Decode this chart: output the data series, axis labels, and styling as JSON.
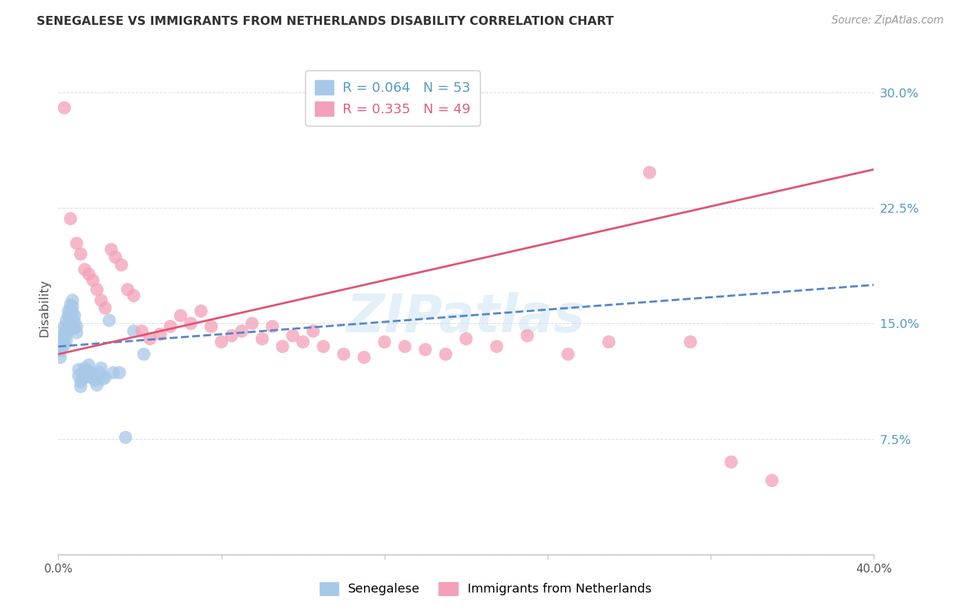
{
  "title": "SENEGALESE VS IMMIGRANTS FROM NETHERLANDS DISABILITY CORRELATION CHART",
  "source": "Source: ZipAtlas.com",
  "ylabel": "Disability",
  "yticks": [
    0.0,
    0.075,
    0.15,
    0.225,
    0.3
  ],
  "ytick_labels": [
    "",
    "7.5%",
    "15.0%",
    "22.5%",
    "30.0%"
  ],
  "xlim": [
    0.0,
    0.4
  ],
  "ylim": [
    0.0,
    0.32
  ],
  "xtick_positions": [
    0.0,
    0.08,
    0.16,
    0.24,
    0.32,
    0.4
  ],
  "xtick_labels": [
    "0.0%",
    "",
    "",
    "",
    "",
    "40.0%"
  ],
  "blue_color": "#a8c8e8",
  "pink_color": "#f4a0b8",
  "blue_line_color": "#5588cc",
  "pink_line_color": "#e05575",
  "grid_color": "#dddddd",
  "background_color": "#ffffff",
  "watermark": "ZIPatlas",
  "senegalese_x": [
    0.001,
    0.001,
    0.002,
    0.002,
    0.002,
    0.003,
    0.003,
    0.003,
    0.003,
    0.004,
    0.004,
    0.004,
    0.004,
    0.005,
    0.005,
    0.005,
    0.005,
    0.006,
    0.006,
    0.006,
    0.007,
    0.007,
    0.007,
    0.008,
    0.008,
    0.008,
    0.009,
    0.009,
    0.01,
    0.01,
    0.011,
    0.011,
    0.012,
    0.012,
    0.013,
    0.013,
    0.014,
    0.015,
    0.015,
    0.016,
    0.017,
    0.018,
    0.019,
    0.02,
    0.021,
    0.022,
    0.023,
    0.025,
    0.027,
    0.03,
    0.033,
    0.037,
    0.042
  ],
  "senegalese_y": [
    0.132,
    0.128,
    0.142,
    0.138,
    0.134,
    0.148,
    0.144,
    0.14,
    0.136,
    0.152,
    0.148,
    0.143,
    0.139,
    0.158,
    0.155,
    0.15,
    0.145,
    0.162,
    0.158,
    0.154,
    0.165,
    0.161,
    0.157,
    0.155,
    0.151,
    0.147,
    0.148,
    0.144,
    0.12,
    0.116,
    0.112,
    0.109,
    0.118,
    0.114,
    0.121,
    0.117,
    0.119,
    0.123,
    0.119,
    0.115,
    0.117,
    0.113,
    0.11,
    0.118,
    0.121,
    0.114,
    0.115,
    0.152,
    0.118,
    0.118,
    0.076,
    0.145,
    0.13
  ],
  "netherlands_x": [
    0.003,
    0.006,
    0.009,
    0.011,
    0.013,
    0.015,
    0.017,
    0.019,
    0.021,
    0.023,
    0.026,
    0.028,
    0.031,
    0.034,
    0.037,
    0.041,
    0.045,
    0.05,
    0.055,
    0.06,
    0.065,
    0.07,
    0.075,
    0.08,
    0.085,
    0.09,
    0.095,
    0.1,
    0.105,
    0.11,
    0.115,
    0.12,
    0.125,
    0.13,
    0.14,
    0.15,
    0.16,
    0.17,
    0.18,
    0.19,
    0.2,
    0.215,
    0.23,
    0.25,
    0.27,
    0.29,
    0.31,
    0.33,
    0.35
  ],
  "netherlands_y": [
    0.29,
    0.218,
    0.202,
    0.195,
    0.185,
    0.182,
    0.178,
    0.172,
    0.165,
    0.16,
    0.198,
    0.193,
    0.188,
    0.172,
    0.168,
    0.145,
    0.14,
    0.143,
    0.148,
    0.155,
    0.15,
    0.158,
    0.148,
    0.138,
    0.142,
    0.145,
    0.15,
    0.14,
    0.148,
    0.135,
    0.142,
    0.138,
    0.145,
    0.135,
    0.13,
    0.128,
    0.138,
    0.135,
    0.133,
    0.13,
    0.14,
    0.135,
    0.142,
    0.13,
    0.138,
    0.248,
    0.138,
    0.06,
    0.048
  ]
}
